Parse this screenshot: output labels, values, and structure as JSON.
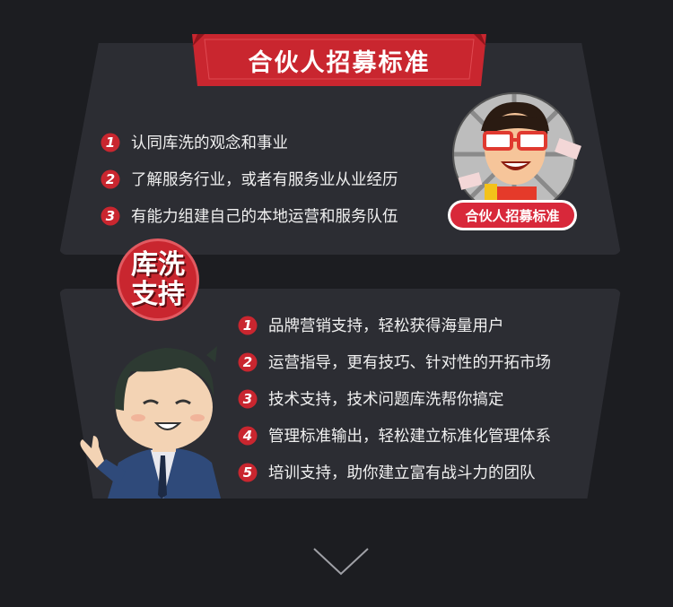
{
  "banner": {
    "title": "合伙人招募标准"
  },
  "requirements": [
    {
      "num": "1",
      "text": "认同库洗的观念和事业"
    },
    {
      "num": "2",
      "text": "了解服务行业，或者有服务业从业经历"
    },
    {
      "num": "3",
      "text": "有能力组建自己的本地运营和服务队伍"
    }
  ],
  "avatar": {
    "label": "合伙人招募标准"
  },
  "support": {
    "badge_line1": "库洗",
    "badge_line2": "支持",
    "items": [
      {
        "num": "1",
        "text": "品牌营销支持，轻松获得海量用户"
      },
      {
        "num": "2",
        "text": "运营指导，更有技巧、针对性的开拓市场"
      },
      {
        "num": "3",
        "text": "技术支持，技术问题库洗帮你搞定"
      },
      {
        "num": "4",
        "text": "管理标准输出，轻松建立标准化管理体系"
      },
      {
        "num": "5",
        "text": "培训支持，助你建立富有战斗力的团队"
      }
    ]
  },
  "colors": {
    "accent": "#c9262f",
    "background": "#1c1d21",
    "panel": "#2c2d33"
  }
}
